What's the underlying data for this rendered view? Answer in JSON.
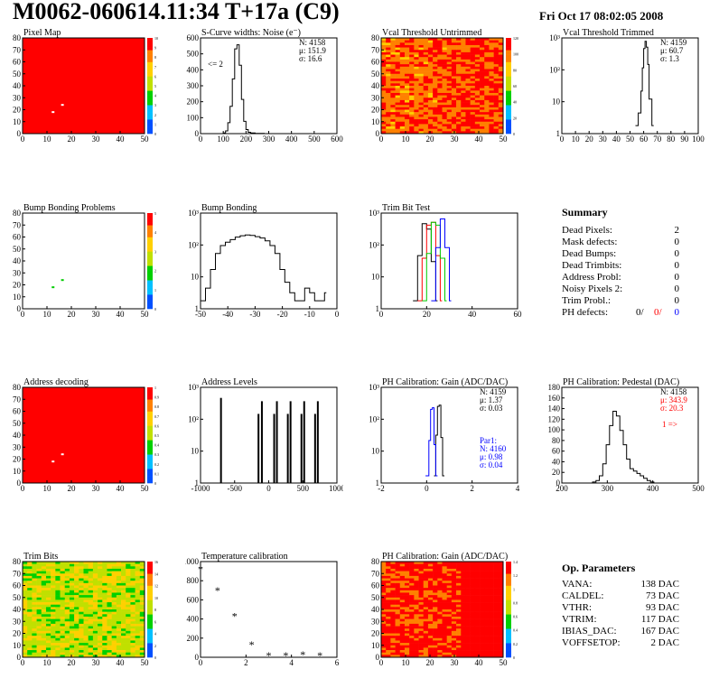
{
  "header": {
    "title": "M0062-060614.11:34 T+17a (C9)",
    "date": "Fri Oct 17 08:02:05 2008"
  },
  "colors": {
    "red": "#ff0000",
    "blue": "#0000ff",
    "green": "#00cc00",
    "black": "#000000"
  },
  "chart_data": [
    {
      "id": "pixel-map",
      "type": "heatmap",
      "title": "Pixel Map",
      "xlim": [
        0,
        52
      ],
      "ylim": [
        0,
        80
      ],
      "xticks": [
        "0",
        "10",
        "20",
        "30",
        "40",
        "50"
      ],
      "yticks": [
        "0",
        "10",
        "20",
        "30",
        "40",
        "50",
        "60",
        "70",
        "80"
      ],
      "zlim": [
        0,
        10
      ],
      "zticks": [
        "0",
        "1",
        "2",
        "3",
        "4",
        "5",
        "6",
        "7",
        "8",
        "9",
        "10"
      ],
      "fill": "#ff0000",
      "marks": [
        {
          "x": 13,
          "y": 18,
          "color": "#ffffff"
        },
        {
          "x": 17,
          "y": 24,
          "color": "#ffffff"
        }
      ]
    },
    {
      "id": "scurve-widths",
      "type": "line",
      "title": "S-Curve widths: Noise (e⁻)",
      "xlim": [
        0,
        600
      ],
      "ylim": [
        0,
        700
      ],
      "xticks": [
        "0",
        "100",
        "200",
        "300",
        "400",
        "500",
        "600"
      ],
      "yticks": [
        "0",
        "100",
        "200",
        "300",
        "400",
        "500",
        "600"
      ],
      "x": [
        80,
        100,
        110,
        120,
        130,
        140,
        150,
        160,
        170,
        180,
        190,
        200,
        210,
        220,
        240,
        260,
        280
      ],
      "y": [
        0,
        5,
        20,
        80,
        200,
        400,
        620,
        650,
        500,
        250,
        90,
        30,
        10,
        5,
        2,
        1,
        0
      ],
      "stats": [
        "N: 4158",
        "μ: 151.9",
        "σ: 16.6"
      ],
      "annotation": "<= 2"
    },
    {
      "id": "vcal-untrimmed",
      "type": "heatmap",
      "title": "Vcal Threshold Untrimmed",
      "xlim": [
        0,
        52
      ],
      "ylim": [
        0,
        80
      ],
      "xticks": [
        "0",
        "10",
        "20",
        "30",
        "40",
        "50"
      ],
      "yticks": [
        "0",
        "10",
        "20",
        "30",
        "40",
        "50",
        "60",
        "70",
        "80"
      ],
      "zlim": [
        0,
        130
      ],
      "zticks": [
        "0",
        "20",
        "40",
        "60",
        "80",
        "100",
        "120"
      ],
      "fill": "#ffa020"
    },
    {
      "id": "vcal-trimmed",
      "type": "line",
      "title": "Vcal Threshold Trimmed",
      "log_y": true,
      "xlim": [
        0,
        100
      ],
      "ylim": [
        0.5,
        2000
      ],
      "xticks": [
        "0",
        "10",
        "20",
        "30",
        "40",
        "50",
        "60",
        "70",
        "80",
        "90",
        "100"
      ],
      "yticks": [
        "1",
        "10",
        "10²",
        "10³"
      ],
      "x": [
        54,
        56,
        58,
        59,
        60,
        61,
        62,
        63,
        64,
        66
      ],
      "y": [
        1,
        3,
        20,
        150,
        800,
        1500,
        900,
        200,
        10,
        1
      ],
      "stats": [
        "N: 4159",
        "μ: 60.7",
        "σ: 1.3"
      ]
    },
    {
      "id": "bump-bonding-problems",
      "type": "heatmap",
      "title": "Bump Bonding Problems",
      "xlim": [
        0,
        52
      ],
      "ylim": [
        0,
        80
      ],
      "xticks": [
        "0",
        "10",
        "20",
        "30",
        "40",
        "50"
      ],
      "yticks": [
        "0",
        "10",
        "20",
        "30",
        "40",
        "50",
        "60",
        "70",
        "80"
      ],
      "zlim": [
        0,
        5
      ],
      "zticks": [
        "0",
        "1",
        "2",
        "3",
        "4",
        "5"
      ],
      "fill": "#ffffff",
      "marks": [
        {
          "x": 13,
          "y": 18,
          "color": "#00cc00"
        },
        {
          "x": 17,
          "y": 24,
          "color": "#00cc00"
        }
      ]
    },
    {
      "id": "bump-bonding",
      "type": "line",
      "title": "Bump Bonding",
      "log_y": true,
      "xlim": [
        -50,
        5
      ],
      "ylim": [
        0.5,
        2000
      ],
      "xticks": [
        "-50",
        "-40",
        "-30",
        "-20",
        "-10",
        "0"
      ],
      "yticks": [
        "1",
        "10",
        "10²",
        "10³"
      ],
      "x": [
        -50,
        -48,
        -46,
        -44,
        -42,
        -40,
        -38,
        -36,
        -34,
        -32,
        -30,
        -28,
        -26,
        -24,
        -22,
        -20,
        -18,
        -16,
        -14,
        -12,
        -10,
        -8,
        -6,
        -4,
        -2,
        0
      ],
      "y": [
        1,
        3,
        15,
        60,
        120,
        160,
        200,
        250,
        280,
        300,
        290,
        260,
        230,
        180,
        120,
        60,
        15,
        5,
        2,
        1,
        1,
        3,
        2,
        1,
        1,
        2
      ]
    },
    {
      "id": "trim-bit-test",
      "type": "line",
      "title": "Trim Bit Test",
      "log_y": true,
      "xlim": [
        0,
        60
      ],
      "ylim": [
        0.5,
        2000
      ],
      "xticks": [
        "0",
        "20",
        "40",
        "60"
      ],
      "yticks": [
        "1",
        "10",
        "10²",
        "10³"
      ],
      "series": [
        {
          "color": "#000000",
          "x": [
            14,
            16,
            18,
            20,
            22,
            24
          ],
          "y": [
            1,
            50,
            800,
            500,
            30,
            1
          ]
        },
        {
          "color": "#ff0000",
          "x": [
            16,
            18,
            20,
            22,
            24,
            26
          ],
          "y": [
            1,
            40,
            700,
            900,
            50,
            1
          ]
        },
        {
          "color": "#00cc00",
          "x": [
            18,
            20,
            22,
            24,
            26,
            28
          ],
          "y": [
            1,
            60,
            900,
            700,
            40,
            1
          ]
        },
        {
          "color": "#0000ff",
          "x": [
            22,
            24,
            26,
            28,
            30
          ],
          "y": [
            1,
            100,
            1200,
            100,
            1
          ]
        }
      ]
    },
    {
      "id": "address-decoding",
      "type": "heatmap",
      "title": "Address decoding",
      "xlim": [
        0,
        52
      ],
      "ylim": [
        0,
        80
      ],
      "xticks": [
        "0",
        "10",
        "20",
        "30",
        "40",
        "50"
      ],
      "yticks": [
        "0",
        "10",
        "20",
        "30",
        "40",
        "50",
        "60",
        "70",
        "80"
      ],
      "zlim": [
        0,
        1
      ],
      "zticks": [
        "0",
        "0.1",
        "0.2",
        "0.3",
        "0.4",
        "0.5",
        "0.6",
        "0.7",
        "0.8",
        "0.9",
        "1"
      ],
      "fill": "#ff0000",
      "marks": [
        {
          "x": 13,
          "y": 18,
          "color": "#ffffff"
        },
        {
          "x": 17,
          "y": 24,
          "color": "#ffffff"
        }
      ]
    },
    {
      "id": "address-levels",
      "type": "bar",
      "title": "Address Levels",
      "log_y": true,
      "xlim": [
        -1000,
        1000
      ],
      "ylim": [
        0.5,
        2000
      ],
      "xticks": [
        "-1000",
        "-500",
        "0",
        "500",
        "1000"
      ],
      "yticks": [
        "1",
        "10",
        "10²",
        "10³"
      ],
      "x": [
        -700,
        -150,
        -100,
        80,
        120,
        280,
        320,
        480,
        520,
        680,
        720
      ],
      "y": [
        800,
        200,
        600,
        200,
        600,
        200,
        600,
        200,
        600,
        200,
        600
      ]
    },
    {
      "id": "ph-calibration-gain",
      "type": "line",
      "title": "PH Calibration: Gain (ADC/DAC)",
      "log_y": true,
      "xlim": [
        -2,
        6
      ],
      "ylim": [
        0.5,
        5000
      ],
      "xticks": [
        "-2",
        "0",
        "2",
        "4"
      ],
      "yticks": [
        "1",
        "10",
        "10²",
        "10³"
      ],
      "series": [
        {
          "color": "#000000",
          "x": [
            1.1,
            1.2,
            1.3,
            1.4,
            1.5,
            1.6
          ],
          "y": [
            1,
            50,
            800,
            900,
            40,
            1
          ]
        },
        {
          "color": "#0000ff",
          "x": [
            0.6,
            0.8,
            0.9,
            1.0,
            1.1,
            1.2
          ],
          "y": [
            1,
            30,
            600,
            700,
            20,
            1
          ]
        }
      ],
      "stats": [
        "N: 4159",
        "μ: 1.37",
        "σ: 0.03"
      ],
      "stats2": [
        "Par1:",
        "N: 4160",
        "μ: 0.98",
        "σ: 0.04"
      ]
    },
    {
      "id": "ph-calibration-pedestal",
      "type": "line",
      "title": "PH Calibration: Pedestal (DAC)",
      "xlim": [
        200,
        600
      ],
      "ylim": [
        0,
        200
      ],
      "xticks": [
        "200",
        "300",
        "400",
        "500"
      ],
      "yticks": [
        "0",
        "20",
        "40",
        "60",
        "80",
        "100",
        "120",
        "140",
        "160",
        "180"
      ],
      "x": [
        280,
        290,
        300,
        310,
        320,
        330,
        340,
        350,
        360,
        370,
        380,
        390,
        400,
        410,
        420,
        430,
        440,
        450,
        460,
        470
      ],
      "y": [
        0,
        2,
        5,
        15,
        40,
        80,
        120,
        150,
        140,
        110,
        80,
        50,
        30,
        25,
        20,
        15,
        10,
        5,
        2,
        0
      ],
      "stats": [
        "N: 4158",
        "μ: 343.9",
        "σ: 20.3"
      ],
      "annotation": "1 =>"
    },
    {
      "id": "trim-bits",
      "type": "heatmap",
      "title": "Trim Bits",
      "xlim": [
        0,
        52
      ],
      "ylim": [
        0,
        80
      ],
      "xticks": [
        "0",
        "10",
        "20",
        "30",
        "40",
        "50"
      ],
      "yticks": [
        "0",
        "10",
        "20",
        "30",
        "40",
        "50",
        "60",
        "70",
        "80"
      ],
      "zlim": [
        0,
        16
      ],
      "zticks": [
        "0",
        "2",
        "4",
        "6",
        "8",
        "10",
        "12",
        "14",
        "16"
      ],
      "fill": "#a0d040"
    },
    {
      "id": "temperature-calibration",
      "type": "scatter",
      "title": "Temperature calibration",
      "xlim": [
        0,
        8
      ],
      "ylim": [
        0,
        1000
      ],
      "xticks": [
        "0",
        "2",
        "4",
        "6"
      ],
      "yticks": [
        "0",
        "200",
        "400",
        "600",
        "800",
        "1000"
      ],
      "x": [
        0,
        1,
        2,
        3,
        4,
        5,
        6,
        7
      ],
      "y": [
        920,
        700,
        430,
        130,
        20,
        20,
        30,
        20
      ]
    },
    {
      "id": "ph-calibration-gain-map",
      "type": "heatmap",
      "title": "PH Calibration: Gain (ADC/DAC)",
      "xlim": [
        0,
        52
      ],
      "ylim": [
        0,
        80
      ],
      "xticks": [
        "0",
        "10",
        "20",
        "30",
        "40",
        "50"
      ],
      "yticks": [
        "0",
        "10",
        "20",
        "30",
        "40",
        "50",
        "60",
        "70",
        "80"
      ],
      "zlim": [
        0,
        1.4
      ],
      "zticks": [
        "0",
        "0.2",
        "0.4",
        "0.6",
        "0.8",
        "1",
        "1.2",
        "1.4"
      ],
      "fill": "#ff2000"
    }
  ],
  "summary": {
    "title": "Summary",
    "rows": [
      {
        "label": "Dead Pixels:",
        "value": "2"
      },
      {
        "label": "Mask defects:",
        "value": "0"
      },
      {
        "label": "Dead Bumps:",
        "value": "0"
      },
      {
        "label": "Dead Trimbits:",
        "value": "0"
      },
      {
        "label": "Address Probl:",
        "value": "0"
      },
      {
        "label": "Noisy Pixels 2:",
        "value": "0"
      },
      {
        "label": "Trim Probl.:",
        "value": "0"
      }
    ],
    "ph_label": "PH defects:",
    "ph_values": [
      "0/",
      "0/",
      "0"
    ]
  },
  "op_params": {
    "title": "Op. Parameters",
    "rows": [
      {
        "label": "VANA:",
        "value": "138 DAC"
      },
      {
        "label": "CALDEL:",
        "value": "73 DAC"
      },
      {
        "label": "VTHR:",
        "value": "93 DAC"
      },
      {
        "label": "VTRIM:",
        "value": "117 DAC"
      },
      {
        "label": "IBIAS_DAC:",
        "value": "167 DAC"
      },
      {
        "label": "VOFFSETOP:",
        "value": "2 DAC"
      }
    ]
  }
}
